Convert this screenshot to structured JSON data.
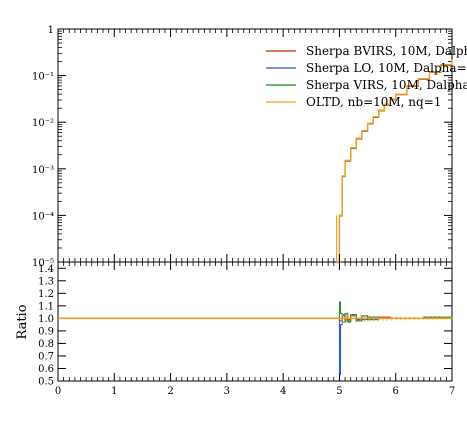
{
  "chart_data": [
    {
      "type": "line",
      "panel": "main",
      "yscale": "log",
      "xlim": [
        0,
        7
      ],
      "ylim": [
        1e-05,
        1
      ],
      "ytick_labels": [
        "1",
        "10⁻¹",
        "10⁻²",
        "10⁻³",
        "10⁻⁴",
        "10⁻⁵"
      ],
      "ytick_values": [
        1,
        0.1,
        0.01,
        0.001,
        0.0001,
        1e-05
      ],
      "legend_placement": "top-right",
      "series": [
        {
          "name": "Sherpa BVIRS, 10M, Dalph",
          "color": "#cc2200"
        },
        {
          "name": "Sherpa LO, 10M, Dalpha=",
          "color": "#1f4fd6"
        },
        {
          "name": "Sherpa VIRS, 10M, Dalpha",
          "color": "#1a8a1a"
        },
        {
          "name": "OLTD, nb=10M, nq=1",
          "color": "#f0a020"
        }
      ],
      "x": [
        4.95,
        5.0,
        5.05,
        5.1,
        5.2,
        5.3,
        5.4,
        5.5,
        5.6,
        5.7,
        5.8,
        5.9,
        6.0,
        6.2,
        6.4,
        6.6,
        6.8,
        7.0
      ],
      "y": [
        1e-05,
        0.0001,
        0.0007,
        0.0015,
        0.0028,
        0.0045,
        0.0065,
        0.0095,
        0.013,
        0.018,
        0.024,
        0.031,
        0.04,
        0.06,
        0.085,
        0.12,
        0.17,
        0.22
      ]
    },
    {
      "type": "line",
      "panel": "ratio",
      "ylabel": "Ratio",
      "xlim": [
        0,
        7
      ],
      "ylim": [
        0.5,
        1.45
      ],
      "xtick_labels": [
        "0",
        "1",
        "2",
        "3",
        "4",
        "5",
        "6",
        "7"
      ],
      "xtick_values": [
        0,
        1,
        2,
        3,
        4,
        5,
        6,
        7
      ],
      "ytick_labels": [
        "1.4",
        "1.3",
        "1.2",
        "1.1",
        "1.0",
        "0.9",
        "0.8",
        "0.7",
        "0.6",
        "0.5"
      ],
      "ytick_values": [
        1.4,
        1.3,
        1.2,
        1.1,
        1.0,
        0.9,
        0.8,
        0.7,
        0.6,
        0.5
      ],
      "series": [
        {
          "name": "Sherpa BVIRS, 10M, Dalph",
          "color": "#cc2200",
          "x": [
            0,
            4.98,
            5.0,
            5.05,
            5.1,
            5.2,
            5.3,
            5.4,
            5.5,
            5.7,
            5.9,
            6.2,
            6.5,
            6.8,
            7.0
          ],
          "y": [
            1.0,
            1.0,
            0.98,
            1.02,
            0.99,
            1.03,
            0.98,
            1.02,
            0.99,
            1.01,
            1.0,
            1.0,
            1.01,
            1.0,
            1.0
          ]
        },
        {
          "name": "Sherpa LO, 10M, Dalpha=",
          "color": "#1f4fd6",
          "x": [
            0,
            4.98,
            5.0,
            5.02,
            5.05,
            5.1,
            5.2,
            5.3,
            5.5,
            5.7,
            6.0,
            6.5,
            7.0
          ],
          "y": [
            1.0,
            1.0,
            0.55,
            0.95,
            1.03,
            0.98,
            1.02,
            0.99,
            1.01,
            1.0,
            1.0,
            1.0,
            1.0
          ]
        },
        {
          "name": "Sherpa VIRS, 10M, Dalpha",
          "color": "#1a8a1a",
          "x": [
            0,
            4.98,
            5.0,
            5.02,
            5.05,
            5.1,
            5.15,
            5.2,
            5.3,
            5.4,
            5.5,
            5.7,
            6.0,
            6.5,
            7.0
          ],
          "y": [
            1.0,
            1.0,
            1.13,
            1.04,
            0.97,
            1.04,
            0.97,
            1.03,
            0.98,
            1.02,
            0.99,
            1.0,
            1.0,
            1.01,
            1.0
          ]
        },
        {
          "name": "OLTD, nb=10M, nq=1",
          "color": "#f0a020",
          "x": [
            0,
            4.98,
            5.0,
            5.05,
            5.1,
            5.2,
            5.3,
            5.4,
            5.5,
            5.7,
            6.0,
            6.5,
            7.0
          ],
          "y": [
            1.0,
            1.0,
            1.0,
            1.0,
            1.0,
            1.0,
            1.0,
            1.0,
            1.0,
            1.0,
            1.0,
            1.0,
            1.0
          ]
        }
      ]
    }
  ]
}
